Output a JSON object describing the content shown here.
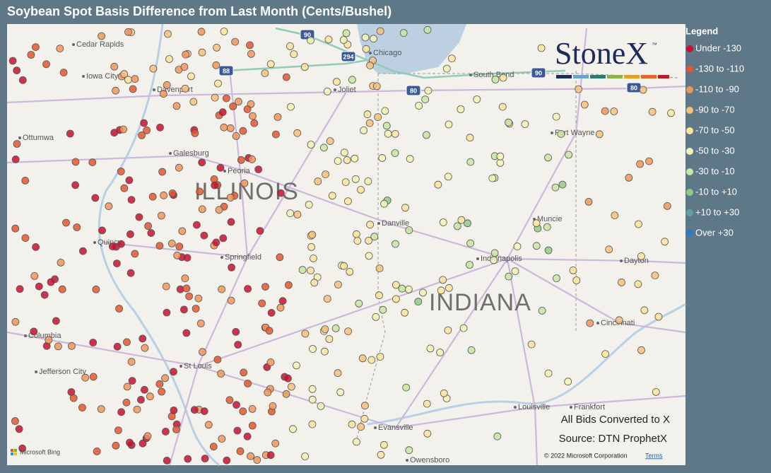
{
  "title": "Soybean Spot Basis Difference from Last Month (Cents/Bushel)",
  "legend": {
    "title": "Legend",
    "items": [
      {
        "label": "Under -130",
        "color": "#c8102e"
      },
      {
        "label": "-130 to -110",
        "color": "#e4572e"
      },
      {
        "label": "-110 to -90",
        "color": "#f0955a"
      },
      {
        "label": "-90 to -70",
        "color": "#f7bf7a"
      },
      {
        "label": "-70 to -50",
        "color": "#fbe39b"
      },
      {
        "label": "-50 to -30",
        "color": "#f2f4b4"
      },
      {
        "label": "-30 to -10",
        "color": "#c7e6a0"
      },
      {
        "label": "-10 to +10",
        "color": "#8ecb8a"
      },
      {
        "label": "+10 to +30",
        "color": "#5fa3a1"
      },
      {
        "label": "Over +30",
        "color": "#2e7cc0"
      }
    ]
  },
  "logo": {
    "name": "StoneX",
    "mark": "™"
  },
  "map_labels": {
    "cities": [
      "Cedar Rapids",
      "Iowa City",
      "Davenport",
      "Chicago",
      "South Bend",
      "Joliet",
      "Ottumwa",
      "Galesburg",
      "Peoria",
      "Fort Wayne",
      "Muncie",
      "Danville",
      "Quincy",
      "Springfield",
      "Indianapolis",
      "Dayton",
      "Cincinnati",
      "Columbia",
      "St Louis",
      "Jefferson City",
      "Louisville",
      "Frankfort",
      "Evansville",
      "Owensboro"
    ],
    "states": [
      "ILLINOIS",
      "INDIANA"
    ],
    "highways": [
      "90",
      "88",
      "294",
      "90",
      "80",
      "80"
    ]
  },
  "notes": [
    "All Bids Converted to X",
    "Source: DTN ProphetX"
  ],
  "attribution": {
    "provider": "Microsoft Bing",
    "copyright": "© 2022 Microsoft Corporation",
    "terms": "Terms"
  }
}
